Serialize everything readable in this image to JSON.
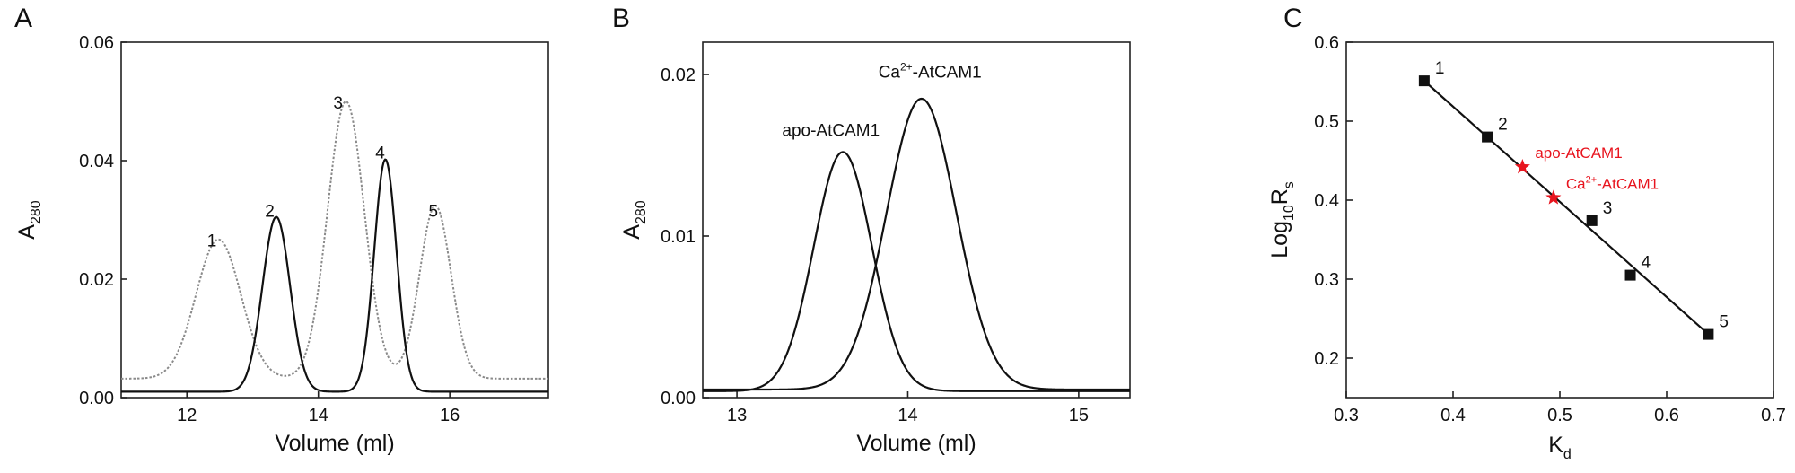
{
  "chart_data": [
    {
      "panel_letter": "A",
      "type": "line",
      "xlabel": "Volume (ml)",
      "ylabel_main": "A",
      "ylabel_sub": "280",
      "xlim": [
        11,
        17.5
      ],
      "ylim": [
        0,
        0.06
      ],
      "x_ticks": [
        12,
        14,
        16
      ],
      "y_ticks": [
        0.0,
        0.02,
        0.04,
        0.06
      ],
      "y_tick_labels": [
        "0.00",
        "0.02",
        "0.04",
        "0.06"
      ],
      "series": [
        {
          "style": "dotted",
          "color": "#8a8a8a",
          "baseline": 0.0032,
          "peaks": [
            {
              "center": 12.48,
              "height": 0.0235,
              "sigma": 0.34
            },
            {
              "center": 14.42,
              "height": 0.0468,
              "sigma": 0.28
            },
            {
              "center": 15.78,
              "height": 0.0292,
              "sigma": 0.24
            }
          ]
        },
        {
          "style": "solid",
          "color": "#111111",
          "baseline": 0.001,
          "peaks": [
            {
              "center": 13.36,
              "height": 0.0295,
              "sigma": 0.21
            },
            {
              "center": 15.02,
              "height": 0.0392,
              "sigma": 0.17
            }
          ]
        }
      ],
      "peak_labels": [
        {
          "text": "1",
          "x": 12.38,
          "y": 0.0255
        },
        {
          "text": "2",
          "x": 13.26,
          "y": 0.0305
        },
        {
          "text": "3",
          "x": 14.3,
          "y": 0.0488
        },
        {
          "text": "4",
          "x": 14.94,
          "y": 0.0404
        },
        {
          "text": "5",
          "x": 15.75,
          "y": 0.0305
        }
      ]
    },
    {
      "panel_letter": "B",
      "type": "line",
      "xlabel": "Volume (ml)",
      "ylabel_main": "A",
      "ylabel_sub": "280",
      "xlim": [
        12.8,
        15.3
      ],
      "ylim": [
        0,
        0.022
      ],
      "x_ticks": [
        13,
        14,
        15
      ],
      "y_ticks": [
        0.0,
        0.01,
        0.02
      ],
      "y_tick_labels": [
        "0.00",
        "0.01",
        "0.02"
      ],
      "series": [
        {
          "name": "apo-AtCAM1",
          "style": "solid",
          "baseline": 0.0004,
          "peaks": [
            {
              "center": 13.62,
              "height": 0.0148,
              "sigma": 0.17
            }
          ]
        },
        {
          "name": "Ca2+-AtCAM1",
          "style": "solid",
          "baseline": 0.0005,
          "peaks": [
            {
              "center": 14.08,
              "height": 0.018,
              "sigma": 0.205
            }
          ]
        }
      ],
      "annotations": [
        {
          "text": "apo-AtCAM1",
          "x": 13.55,
          "y": 0.0162
        },
        {
          "text": "Ca",
          "sup": "2+",
          "rest": "-AtCAM1",
          "x": 14.13,
          "y": 0.0198
        }
      ]
    },
    {
      "panel_letter": "C",
      "type": "scatter",
      "xlabel_main": "K",
      "xlabel_sub": "d",
      "ylabel_main": "Log",
      "ylabel_sub": "10",
      "ylabel_rest": "R",
      "ylabel_rest_sub": "s",
      "xlim": [
        0.3,
        0.7
      ],
      "ylim": [
        0.15,
        0.6
      ],
      "x_ticks": [
        0.3,
        0.4,
        0.5,
        0.6,
        0.7
      ],
      "x_tick_labels": [
        "0.3",
        "0.4",
        "0.5",
        "0.6",
        "0.7"
      ],
      "y_ticks": [
        0.2,
        0.3,
        0.4,
        0.5,
        0.6
      ],
      "y_tick_labels": [
        "0.2",
        "0.3",
        "0.4",
        "0.5",
        "0.6"
      ],
      "fit_line": {
        "x": [
          0.373,
          0.64
        ],
        "y": [
          0.551,
          0.229
        ]
      },
      "standards": [
        {
          "label": "1",
          "x": 0.373,
          "y": 0.551
        },
        {
          "label": "2",
          "x": 0.432,
          "y": 0.48
        },
        {
          "label": "3",
          "x": 0.53,
          "y": 0.374
        },
        {
          "label": "4",
          "x": 0.566,
          "y": 0.305
        },
        {
          "label": "5",
          "x": 0.639,
          "y": 0.23
        }
      ],
      "samples": [
        {
          "label": "apo-AtCAM1",
          "x": 0.465,
          "y": 0.442,
          "color": "#e8141e"
        },
        {
          "label": "Ca",
          "sup": "2+",
          "rest": "-AtCAM1",
          "x": 0.494,
          "y": 0.403,
          "color": "#e8141e"
        }
      ]
    }
  ]
}
